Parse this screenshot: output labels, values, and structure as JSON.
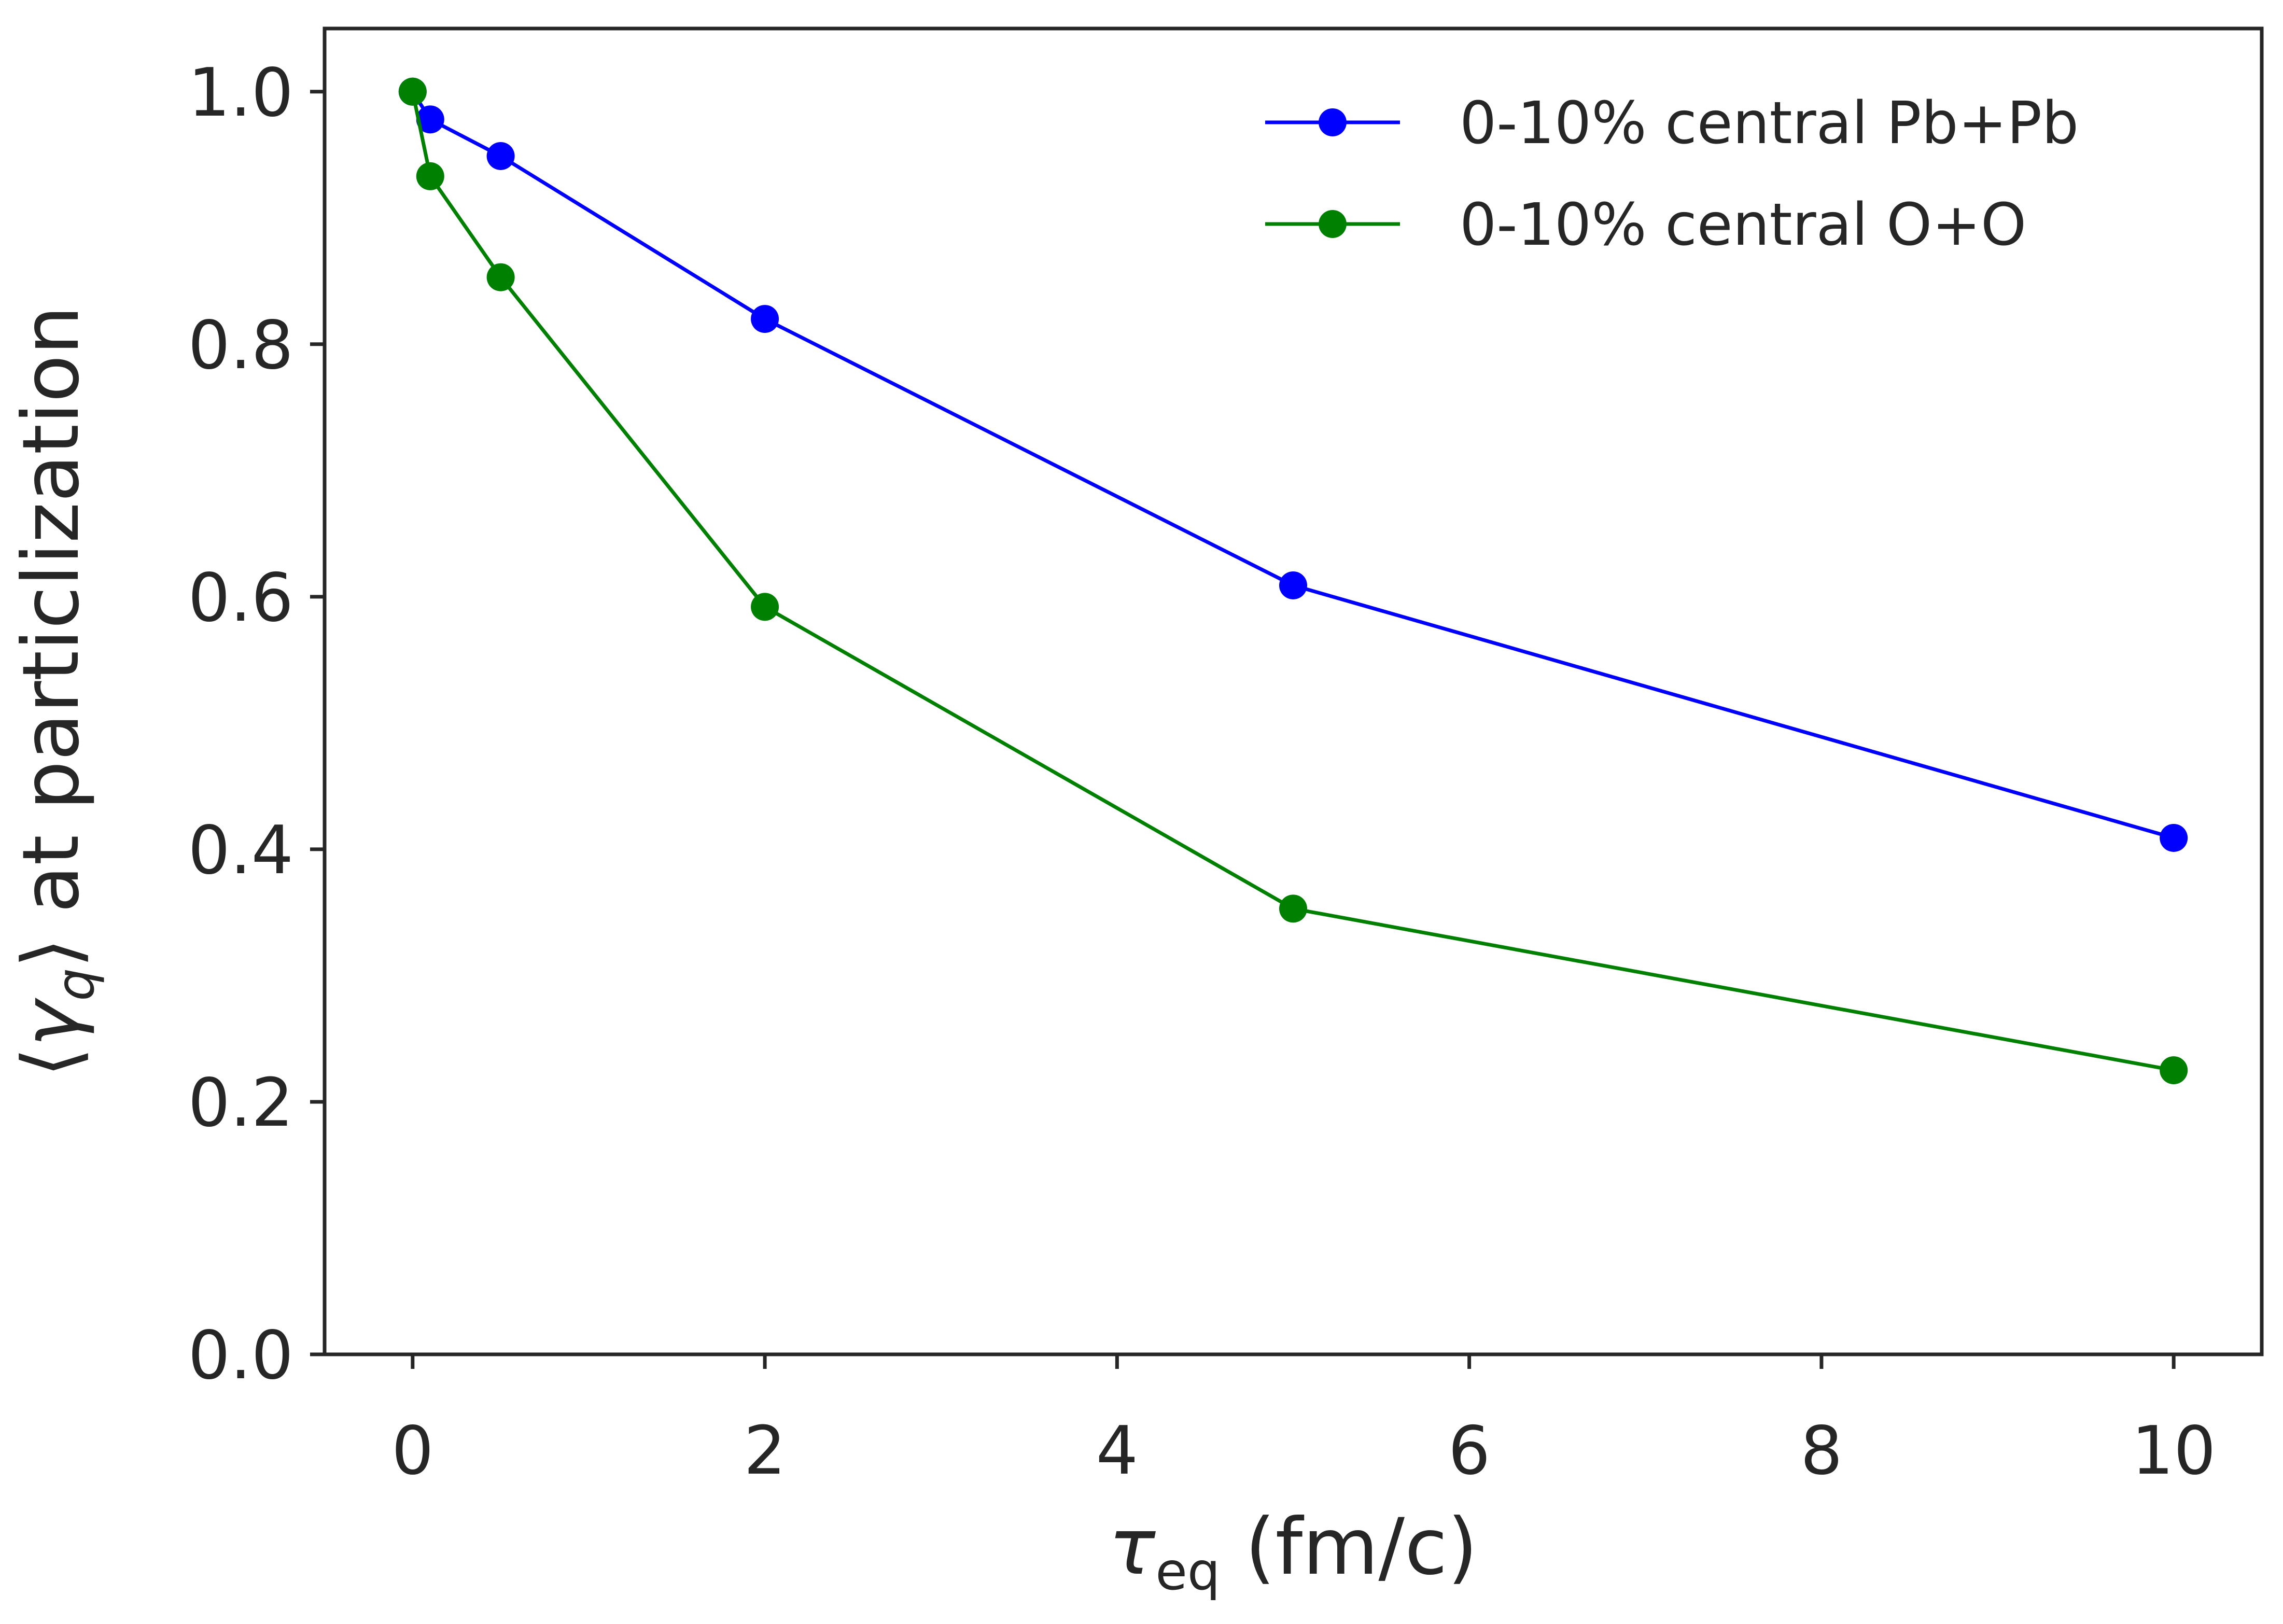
{
  "chart_data": {
    "type": "line",
    "title": "",
    "xlabel": {
      "main": "τ",
      "sub": "eq",
      "rest": " (fm/c)"
    },
    "ylabel": {
      "open": "⟨",
      "sym": "γ",
      "sub": "q",
      "close": "⟩",
      "rest": " at particlization"
    },
    "xlim": [
      -0.5,
      10.5
    ],
    "ylim": [
      0.0,
      1.05
    ],
    "xticks": [
      0,
      2,
      4,
      6,
      8,
      10
    ],
    "xtick_labels": [
      "0",
      "2",
      "4",
      "6",
      "8",
      "10"
    ],
    "yticks": [
      0.0,
      0.2,
      0.4,
      0.6,
      0.8,
      1.0
    ],
    "ytick_labels": [
      "0.0",
      "0.2",
      "0.4",
      "0.6",
      "0.8",
      "1.0"
    ],
    "grid": false,
    "legend_position": "top-right",
    "series": [
      {
        "name": "0-10% central Pb+Pb",
        "color": "#0000ff",
        "marker": "circle",
        "x": [
          0,
          0.1,
          0.5,
          2,
          5,
          10
        ],
        "y": [
          1.0,
          0.978,
          0.949,
          0.82,
          0.609,
          0.409
        ]
      },
      {
        "name": "0-10% central O+O",
        "color": "#008000",
        "marker": "circle",
        "x": [
          0,
          0.1,
          0.5,
          2,
          5,
          10
        ],
        "y": [
          1.0,
          0.933,
          0.853,
          0.592,
          0.353,
          0.225
        ]
      }
    ]
  }
}
